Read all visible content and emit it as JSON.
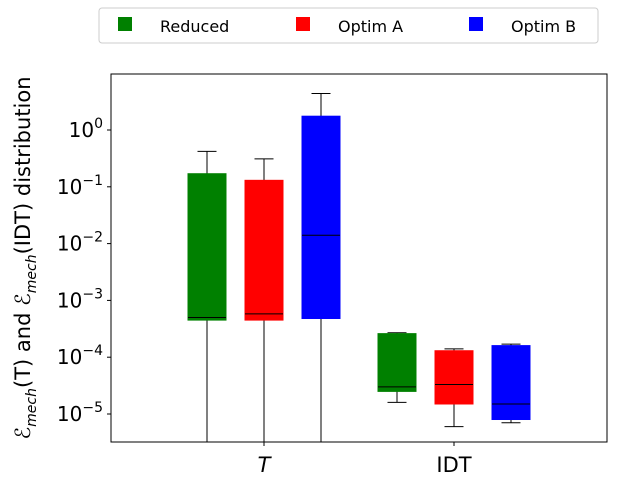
{
  "chart_data": {
    "type": "boxplot",
    "yscale": "log",
    "ylim": [
      3.2e-06,
      8.5
    ],
    "yticks": [
      {
        "value": 1e-05,
        "base": "10",
        "exp": "−5"
      },
      {
        "value": 0.0001,
        "base": "10",
        "exp": "−4"
      },
      {
        "value": 0.001,
        "base": "10",
        "exp": "−3"
      },
      {
        "value": 0.01,
        "base": "10",
        "exp": "−2"
      },
      {
        "value": 0.1,
        "base": "10",
        "exp": "−1"
      },
      {
        "value": 1,
        "base": "10",
        "exp": "0"
      }
    ],
    "ylabel": {
      "p1": "ℰ",
      "p1sub": "mech",
      "p2": "(T) and ",
      "p3": "ℰ",
      "p3sub": "mech",
      "p4": "(IDT) distribution"
    },
    "categories": [
      {
        "label": "T",
        "italic": true
      },
      {
        "label": "IDT",
        "italic": false
      }
    ],
    "legend": {
      "position": "top-center-outside"
    },
    "series": [
      {
        "name": "Reduced",
        "color": "#008000",
        "boxes": [
          {
            "whislo": 1e-07,
            "q1": 0.00045,
            "med": 0.0005,
            "q3": 0.17,
            "whishi": 0.42
          },
          {
            "whislo": 1.6e-05,
            "q1": 2.5e-05,
            "med": 3e-05,
            "q3": 0.00026,
            "whishi": 0.00027
          }
        ]
      },
      {
        "name": "Optim A",
        "color": "#ff0000",
        "boxes": [
          {
            "whislo": 1e-07,
            "q1": 0.00045,
            "med": 0.00058,
            "q3": 0.13,
            "whishi": 0.31
          },
          {
            "whislo": 6e-06,
            "q1": 1.5e-05,
            "med": 3.3e-05,
            "q3": 0.00013,
            "whishi": 0.00014
          }
        ]
      },
      {
        "name": "Optim B",
        "color": "#0000ff",
        "boxes": [
          {
            "whislo": 1e-07,
            "q1": 0.00048,
            "med": 0.014,
            "q3": 1.75,
            "whishi": 4.4
          },
          {
            "whislo": 7e-06,
            "q1": 8e-06,
            "med": 1.5e-05,
            "q3": 0.00016,
            "whishi": 0.00017
          }
        ]
      }
    ]
  }
}
